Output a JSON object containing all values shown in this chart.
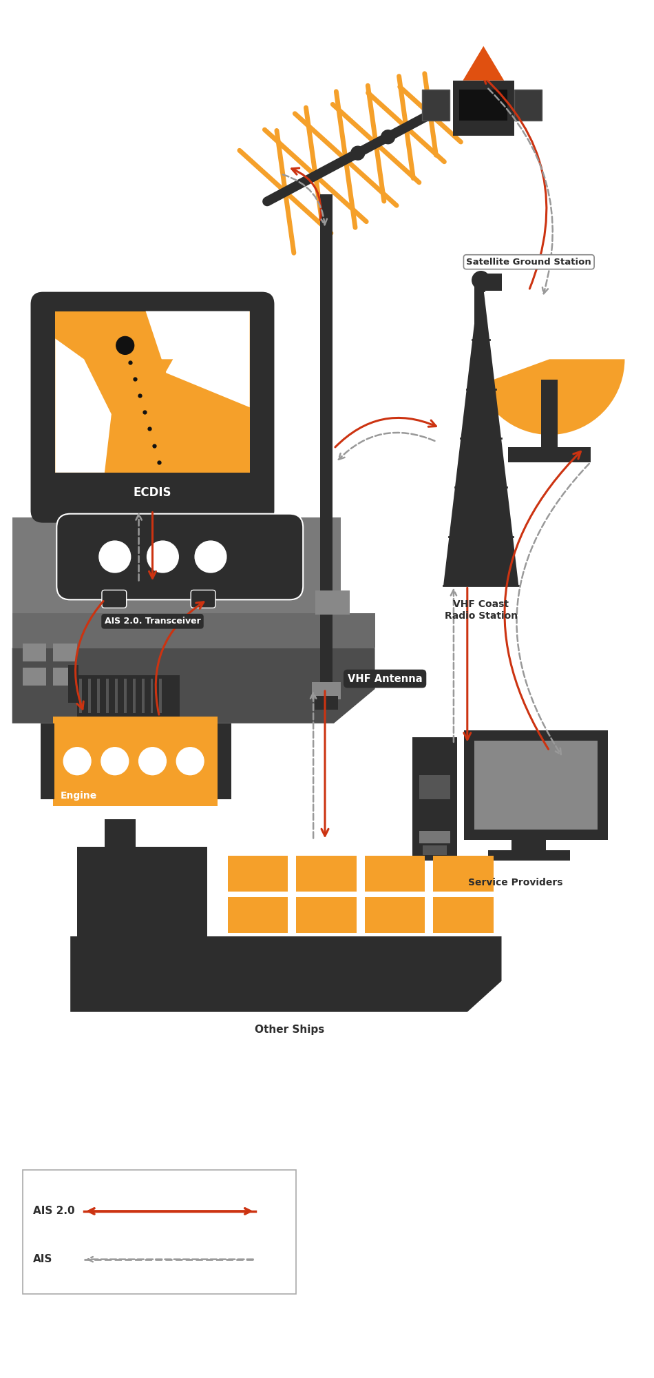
{
  "bg_color": "#ffffff",
  "orange": "#F5A02A",
  "dark_orange": "#E05010",
  "dark_gray": "#2d2d2d",
  "mid_gray": "#666666",
  "ship_gray1": "#555555",
  "ship_gray2": "#7a7a7a",
  "ship_gray3": "#888888",
  "red_arrow": "#CC3311",
  "dashed_gray": "#999999",
  "labels": {
    "ecdis": "ECDIS",
    "ais_transceiver": "AIS 2.0. Transceiver",
    "engine": "Engine",
    "vhf_antenna": "VHF Antenna",
    "other_ships": "Other Ships",
    "satellite_ground": "Satellite Ground Station",
    "vhf_coast": "VHF Coast\nRadio Station",
    "service_providers": "Service Providers"
  },
  "legend": {
    "ais20_label": "AIS 2.0",
    "ais_label": "AIS"
  }
}
